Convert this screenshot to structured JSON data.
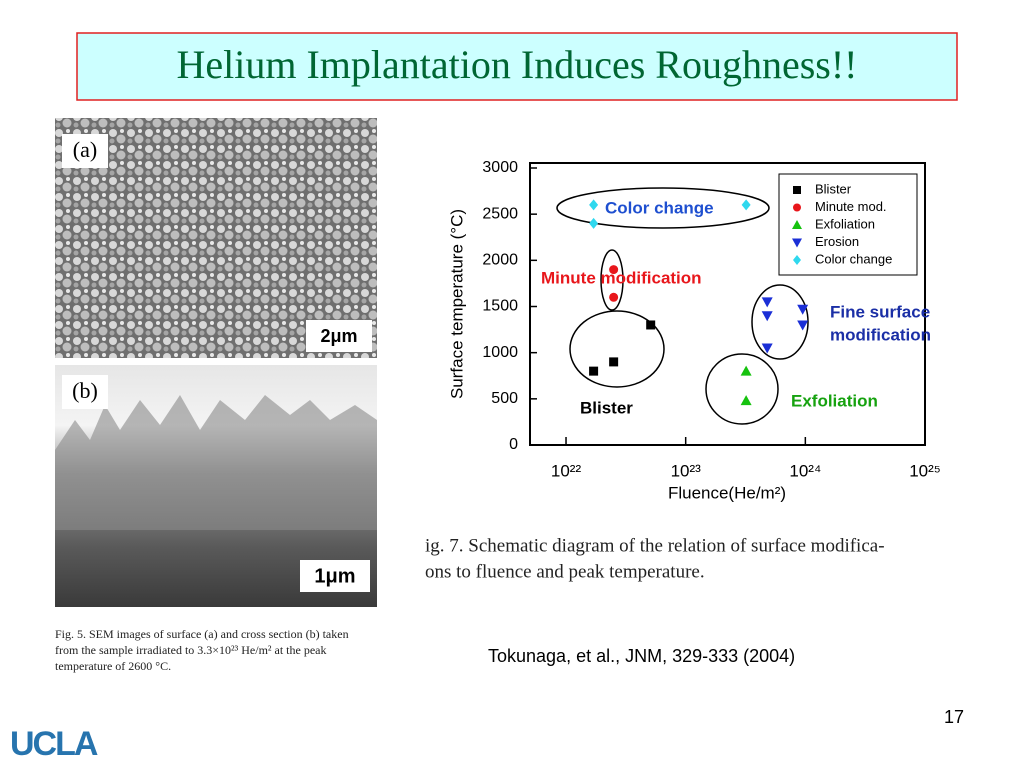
{
  "slide": {
    "title": "Helium Implantation Induces Roughness!!",
    "panel_a_label": "(a)",
    "panel_a_scale": "2μm",
    "panel_b_label": "(b)",
    "panel_b_scale": "1μm",
    "fig5_caption": [
      "Fig. 5. SEM images of surface (a) and cross section (b) taken",
      "from the sample irradiated to 3.3×10²³ He/m² at the peak",
      "temperature of 2600 °C."
    ],
    "fig7_caption": [
      "ig.  7.  Schematic diagram of the relation of surface modifica-",
      "ons to fluence and peak temperature."
    ],
    "citation": "Tokunaga, et al., JNM, 329-333 (2004)",
    "page_number": "17",
    "logo": "UCLA"
  },
  "chart_data": {
    "type": "scatter",
    "x_label": "Fluence(He/m²)",
    "y_label": "Surface temperature (°C)",
    "x_scale": "log",
    "xlim": [
      5e+21,
      1e+25
    ],
    "ylim": [
      0,
      3000
    ],
    "xticks": [
      {
        "value": 1e+22,
        "label": "10²²"
      },
      {
        "value": 1e+23,
        "label": "10²³"
      },
      {
        "value": 1e+24,
        "label": "10²⁴"
      },
      {
        "value": 1e+25,
        "label": "10²⁵"
      }
    ],
    "yticks": [
      0,
      500,
      1000,
      1500,
      2000,
      2500,
      3000
    ],
    "legend": "upper right",
    "series": [
      {
        "name": "Blister",
        "color": "#000000",
        "marker": "square",
        "x": [
          1.7e+22,
          2.5e+22,
          5.1e+22
        ],
        "values": [
          800,
          900,
          1300
        ]
      },
      {
        "name": "Minute mod.",
        "color": "#e8161b",
        "marker": "circle",
        "x": [
          2.5e+22,
          2.5e+22
        ],
        "values": [
          1900,
          1600
        ]
      },
      {
        "name": "Exfoliation",
        "color": "#16c20f",
        "marker": "triangle-up",
        "x": [
          3.2e+23,
          3.2e+23
        ],
        "values": [
          800,
          480
        ]
      },
      {
        "name": "Erosion",
        "color": "#1b2fd6",
        "marker": "triangle-down",
        "x": [
          4.8e+23,
          4.8e+23,
          4.8e+23,
          9.5e+23,
          9.5e+23
        ],
        "values": [
          1550,
          1400,
          1050,
          1470,
          1300
        ]
      },
      {
        "name": "Color change",
        "color": "#2fd8ee",
        "marker": "diamond",
        "x": [
          1.7e+22,
          1.7e+22,
          3.2e+23
        ],
        "values": [
          2600,
          2400,
          2600
        ]
      }
    ],
    "annotations": [
      {
        "text": "Color change",
        "color": "#1e4fd0"
      },
      {
        "text": "Minute modification",
        "color": "#e8161b"
      },
      {
        "text": "Blister",
        "color": "#000000"
      },
      {
        "text": "Fine surface",
        "color": "#1b2fa6"
      },
      {
        "text": "modification",
        "color": "#1b2fa6"
      },
      {
        "text": "Exfoliation",
        "color": "#16a20f"
      }
    ]
  }
}
